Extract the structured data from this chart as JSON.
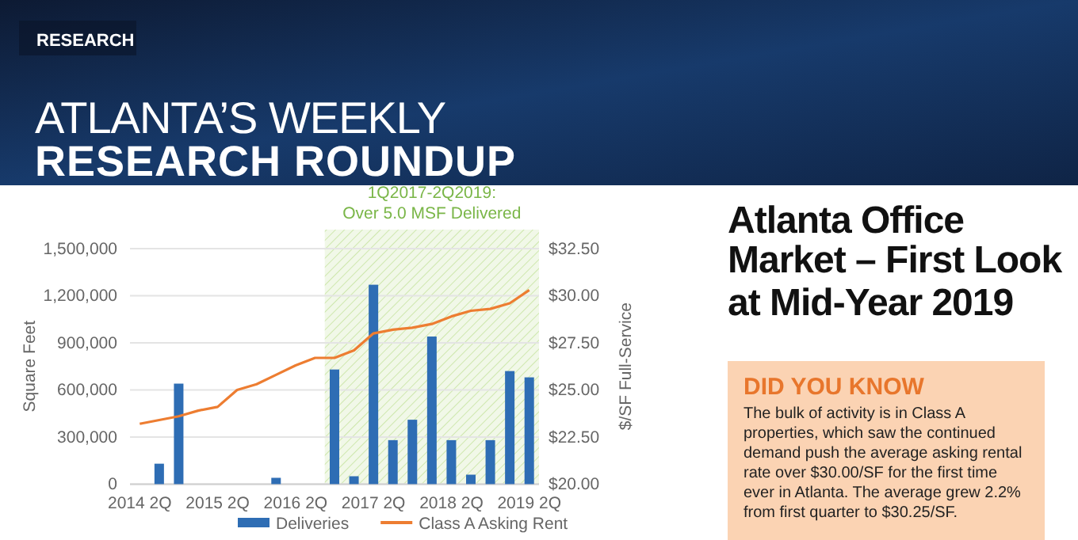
{
  "chart_data": {
    "type": "bar",
    "title": "Atlanta Office Market – First Look at Mid-Year 2019",
    "annotations": [
      "RESEARCH",
      "ATLANTA’S WEEKLY",
      "RESEARCH ROUNDUP",
      "DID YOU KNOW",
      "The bulk of activity is in Class A properties, which saw the continued demand push the average asking rental rate over $30.00/SF for the first time ever in Atlanta. The average grew 2.2% from first quarter to $30.25/SF.",
      "1Q2017-2Q2019:\nOver 5.0 MSF Delivered"
    ],
    "ylabel": "Square Feet",
    "y2label": "$/SF Full-Service",
    "categories": [
      "2014 2Q",
      null,
      null,
      null,
      "2015 2Q",
      null,
      null,
      null,
      "2016 2Q",
      null,
      null,
      null,
      "2017 2Q",
      null,
      null,
      null,
      "2018 2Q",
      null,
      null,
      null,
      "2019 2Q"
    ],
    "ylim": [
      0,
      1500000
    ],
    "yticks": [
      {
        "value": 0,
        "label": "0"
      },
      {
        "value": 300000,
        "label": "300,000"
      },
      {
        "value": 600000,
        "label": "600,000"
      },
      {
        "value": 900000,
        "label": "900,000"
      },
      {
        "value": 1200000,
        "label": "1,200,000"
      },
      {
        "value": 1500000,
        "label": "1,500,000"
      }
    ],
    "y2lim": [
      20,
      32.5
    ],
    "y2ticks": [
      {
        "value": 20,
        "label": "$20.00"
      },
      {
        "value": 22.5,
        "label": "$22.50"
      },
      {
        "value": 25,
        "label": "$25.00"
      },
      {
        "value": 27.5,
        "label": "$27.50"
      },
      {
        "value": 30,
        "label": "$30.00"
      },
      {
        "value": 32.5,
        "label": "$32.50"
      }
    ],
    "series": [
      {
        "name": "Deliveries",
        "color": "#2e6db4",
        "values": [
          null,
          130000,
          640000,
          null,
          null,
          null,
          null,
          40000,
          null,
          null,
          730000,
          50000,
          1270000,
          280000,
          410000,
          940000,
          280000,
          60000,
          280000,
          720000,
          680000
        ]
      },
      {
        "name": "Class A Asking Rent",
        "type": "line",
        "axis": "y2",
        "color": "#ed7d31",
        "values": [
          23.2,
          23.4,
          23.6,
          23.9,
          24.1,
          25.0,
          25.3,
          25.8,
          26.3,
          26.7,
          26.7,
          27.1,
          28.0,
          28.2,
          28.3,
          28.5,
          28.9,
          29.2,
          29.3,
          29.6,
          30.3
        ]
      }
    ],
    "grid": "y",
    "legend": "bottom"
  }
}
